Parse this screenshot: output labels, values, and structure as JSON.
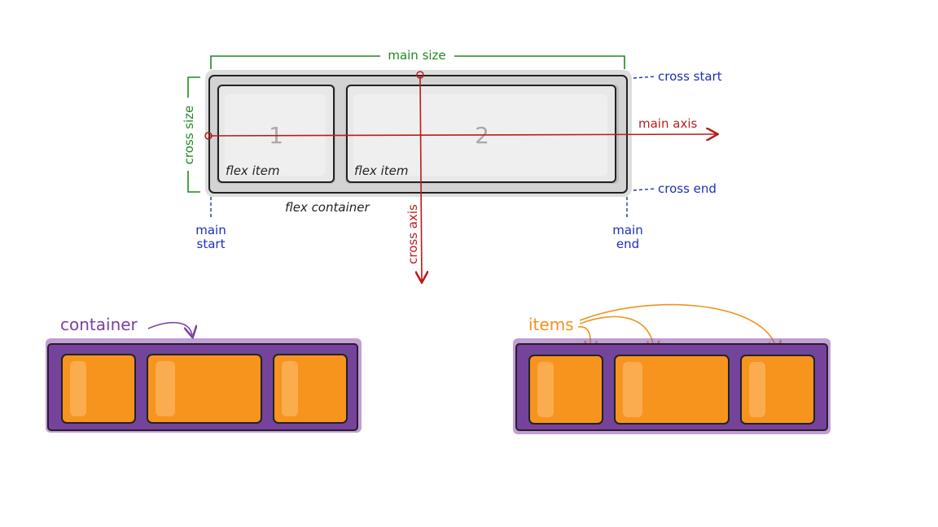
{
  "labels": {
    "main_size": "main size",
    "cross_size": "cross size",
    "cross_start": "cross start",
    "cross_end": "cross end",
    "main_axis": "main axis",
    "cross_axis": "cross axis",
    "main_start_1": "main",
    "main_start_2": "start",
    "main_end_1": "main",
    "main_end_2": "end",
    "flex_container": "flex container",
    "flex_item": "flex item",
    "item_1_number": "1",
    "item_2_number": "2",
    "container": "container",
    "items": "items"
  },
  "colors": {
    "green": "#1f8a1f",
    "blue": "#1c2fb8",
    "red": "#b81c1c",
    "purple": "#7b3fa0",
    "orange": "#f7941e",
    "gray_container": "#d3d3d3",
    "gray_item": "#e8e8e8"
  }
}
